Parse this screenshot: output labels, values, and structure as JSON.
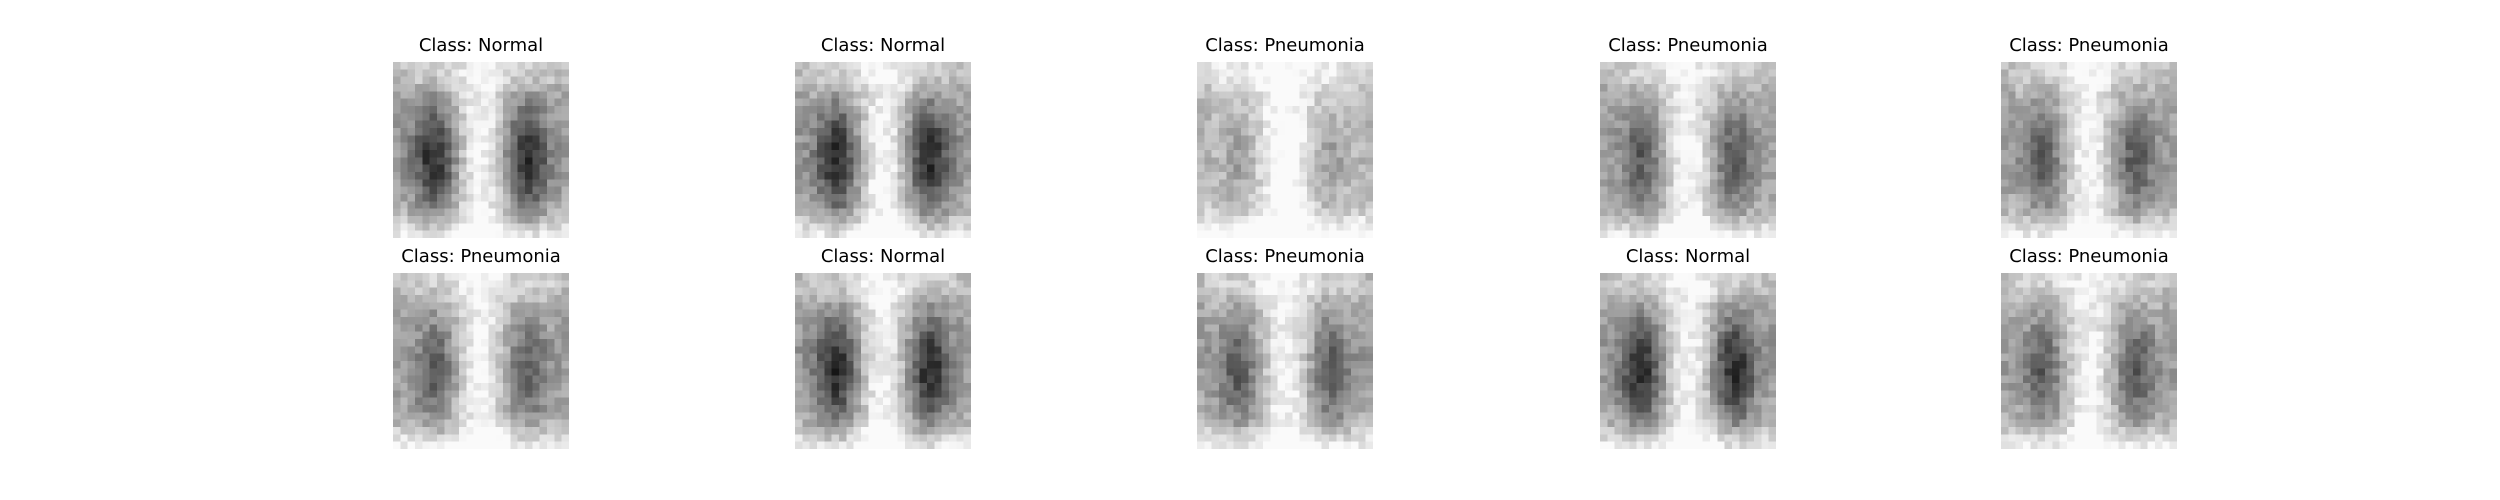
{
  "figure": {
    "panels": [
      {
        "title": "Class: Normal",
        "kind": "normal"
      },
      {
        "title": "Class: Normal",
        "kind": "normal"
      },
      {
        "title": "Class: Pneumonia",
        "kind": "pneumonia-bright"
      },
      {
        "title": "Class: Pneumonia",
        "kind": "pneumonia"
      },
      {
        "title": "Class: Pneumonia",
        "kind": "pneumonia"
      },
      {
        "title": "Class: Pneumonia",
        "kind": "pneumonia"
      },
      {
        "title": "Class: Normal",
        "kind": "normal"
      },
      {
        "title": "Class: Pneumonia",
        "kind": "pneumonia"
      },
      {
        "title": "Class: Normal",
        "kind": "normal"
      },
      {
        "title": "Class: Pneumonia",
        "kind": "pneumonia"
      }
    ]
  }
}
